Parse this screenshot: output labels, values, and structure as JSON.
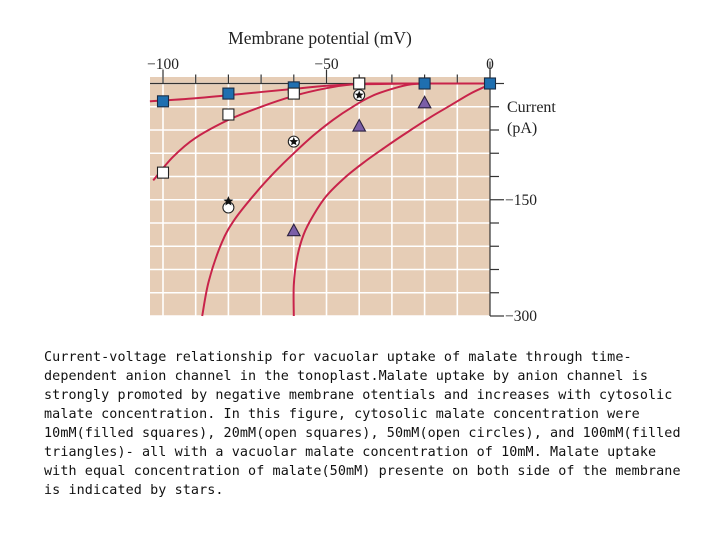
{
  "chart_data": {
    "type": "line",
    "title": "Membrane potential (mV)",
    "xlabel": "Membrane potential (mV)",
    "ylabel": "Current (pA)",
    "xlim": [
      -105,
      0
    ],
    "ylim": [
      -300,
      15
    ],
    "x_ticks": [
      -100,
      -50,
      0
    ],
    "y_ticks": [
      -150,
      -300
    ],
    "x_tick_labels": [
      "−100",
      "−50",
      "0"
    ],
    "y_tick_labels": [
      "−150",
      "−300"
    ],
    "y_axis_label_lines": [
      "Current",
      "(pA)"
    ],
    "colors": {
      "background": "#e6cdb6",
      "grid": "#ffffff",
      "curve": "#c8234a",
      "filled_square": "#1f6fb0",
      "triangle": "#7b5ea7"
    },
    "series": [
      {
        "name": "10mM (filled squares)",
        "marker": "filled-square",
        "curve": [
          [
            -104,
            -23
          ],
          [
            -90,
            -19
          ],
          [
            -75,
            -13
          ],
          [
            -60,
            -7
          ],
          [
            -50,
            -3
          ],
          [
            -40,
            -1
          ],
          [
            -20,
            0
          ],
          [
            0,
            0
          ]
        ],
        "points": [
          [
            -100,
            -23
          ],
          [
            -80,
            -13
          ],
          [
            -60,
            -5
          ],
          [
            -40,
            0
          ],
          [
            -20,
            0
          ],
          [
            0,
            0
          ]
        ]
      },
      {
        "name": "20mM (open squares)",
        "marker": "open-square",
        "curve": [
          [
            -103,
            -125
          ],
          [
            -97,
            -95
          ],
          [
            -90,
            -70
          ],
          [
            -80,
            -47
          ],
          [
            -70,
            -30
          ],
          [
            -60,
            -16
          ],
          [
            -50,
            -6
          ],
          [
            -42,
            -1
          ],
          [
            -35,
            0
          ],
          [
            0,
            0
          ]
        ],
        "points": [
          [
            -100,
            -115
          ],
          [
            -80,
            -40
          ],
          [
            -60,
            -13
          ],
          [
            -40,
            0
          ]
        ]
      },
      {
        "name": "50mM (open circles)",
        "marker": "open-circle",
        "curve": [
          [
            -88,
            -300
          ],
          [
            -86,
            -255
          ],
          [
            -82,
            -205
          ],
          [
            -78,
            -175
          ],
          [
            -72,
            -143
          ],
          [
            -66,
            -115
          ],
          [
            -60,
            -90
          ],
          [
            -54,
            -67
          ],
          [
            -48,
            -47
          ],
          [
            -42,
            -30
          ],
          [
            -36,
            -16
          ],
          [
            -30,
            -7
          ],
          [
            -24,
            -1
          ],
          [
            -18,
            0
          ]
        ],
        "points": [
          [
            -80,
            -160
          ]
        ]
      },
      {
        "name": "100mM (filled triangles)",
        "marker": "filled-triangle",
        "curve": [
          [
            -60,
            -300
          ],
          [
            -60,
            -260
          ],
          [
            -59,
            -225
          ],
          [
            -57,
            -195
          ],
          [
            -54,
            -170
          ],
          [
            -50,
            -145
          ],
          [
            -44,
            -120
          ],
          [
            -38,
            -100
          ],
          [
            -32,
            -82
          ],
          [
            -25,
            -62
          ],
          [
            -18,
            -43
          ],
          [
            -12,
            -28
          ],
          [
            -6,
            -13
          ],
          [
            -1,
            -3
          ],
          [
            0,
            0
          ]
        ],
        "points": [
          [
            -60,
            -190
          ],
          [
            -40,
            -55
          ],
          [
            -20,
            -25
          ]
        ]
      },
      {
        "name": "Equal 50mM both sides (stars)",
        "marker": "star",
        "curve": [],
        "points": [
          [
            -40,
            -15
          ],
          [
            -60,
            -75
          ],
          [
            -80,
            -152
          ]
        ]
      }
    ]
  },
  "caption": "Current-voltage relationship for vacuolar uptake of malate through time-dependent anion channel in the tonoplast.Malate uptake by anion channel is strongly promoted by negative membrane otentials and increases with cytosolic malate concentration. In this figure, cytosolic malate concentration were 10mM(filled squares), 20mM(open squares), 50mM(open circles), and 100mM(filled triangles)- all with a vacuolar malate concentration of 10mM. Malate uptake with equal concentration of malate(50mM) presente on both side of the membrane is indicated by stars."
}
